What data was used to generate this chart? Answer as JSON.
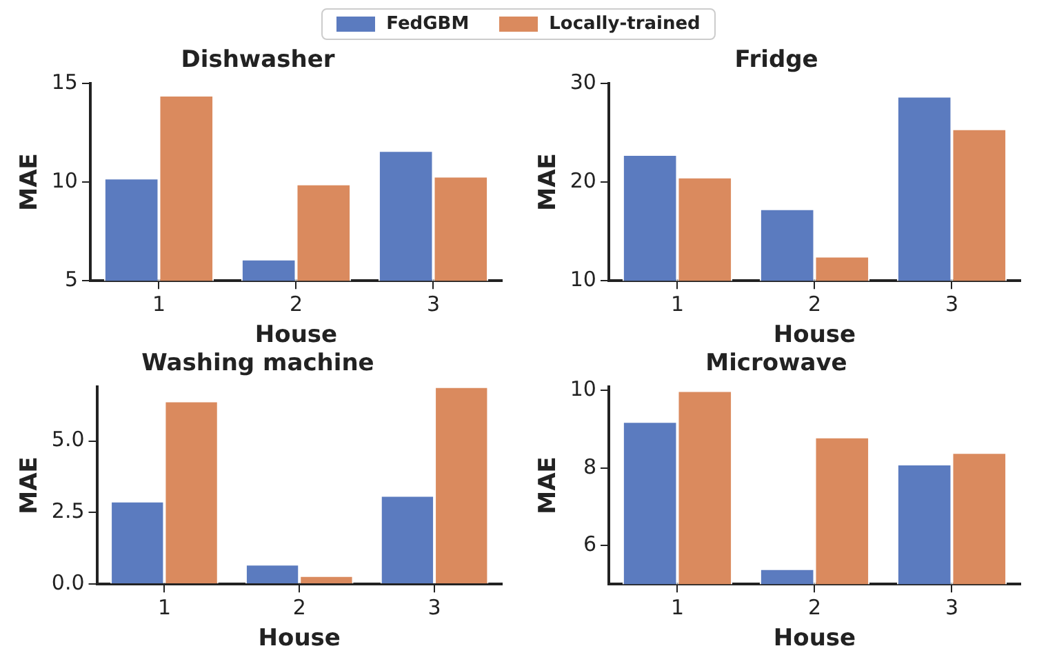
{
  "chart_data": [
    {
      "type": "bar",
      "title": "Dishwasher",
      "xlabel": "House",
      "ylabel": "MAE",
      "categories": [
        "1",
        "2",
        "3"
      ],
      "legend": "top",
      "series": [
        {
          "name": "FedGBM",
          "color": "#5b7bbf",
          "values": [
            10.2,
            6.1,
            11.6
          ]
        },
        {
          "name": "Locally-trained",
          "color": "#da8a5e",
          "values": [
            14.4,
            9.9,
            10.3
          ]
        }
      ],
      "ylim": [
        5,
        15
      ],
      "yticks": [
        5,
        10,
        15
      ]
    },
    {
      "type": "bar",
      "title": "Fridge",
      "xlabel": "House",
      "ylabel": "MAE",
      "categories": [
        "1",
        "2",
        "3"
      ],
      "series": [
        {
          "color": "#5b7bbf",
          "values": [
            22.8,
            17.3,
            28.7
          ]
        },
        {
          "color": "#da8a5e",
          "values": [
            20.5,
            12.5,
            25.4
          ]
        }
      ],
      "ylim": [
        10,
        30
      ],
      "yticks": [
        10,
        20,
        30
      ]
    },
    {
      "type": "bar",
      "title": "Washing machine",
      "xlabel": "House",
      "ylabel": "MAE",
      "categories": [
        "1",
        "2",
        "3"
      ],
      "series": [
        {
          "color": "#5b7bbf",
          "values": [
            2.9,
            0.7,
            3.1
          ]
        },
        {
          "color": "#da8a5e",
          "values": [
            6.4,
            0.3,
            6.9
          ]
        }
      ],
      "ylim": [
        0,
        6.9
      ],
      "yticks": [
        {
          "value": 0,
          "label": "0.0"
        },
        {
          "value": 2.5,
          "label": "2.5"
        },
        {
          "value": 5,
          "label": "5.0"
        }
      ]
    },
    {
      "type": "bar",
      "title": "Microwave",
      "xlabel": "House",
      "ylabel": "MAE",
      "categories": [
        "1",
        "2",
        "3"
      ],
      "series": [
        {
          "color": "#5b7bbf",
          "values": [
            9.2,
            5.4,
            8.1
          ]
        },
        {
          "color": "#da8a5e",
          "values": [
            10.0,
            8.8,
            8.4
          ]
        }
      ],
      "ylim": [
        5,
        10.1
      ],
      "yticks": [
        6,
        8,
        10
      ]
    }
  ]
}
